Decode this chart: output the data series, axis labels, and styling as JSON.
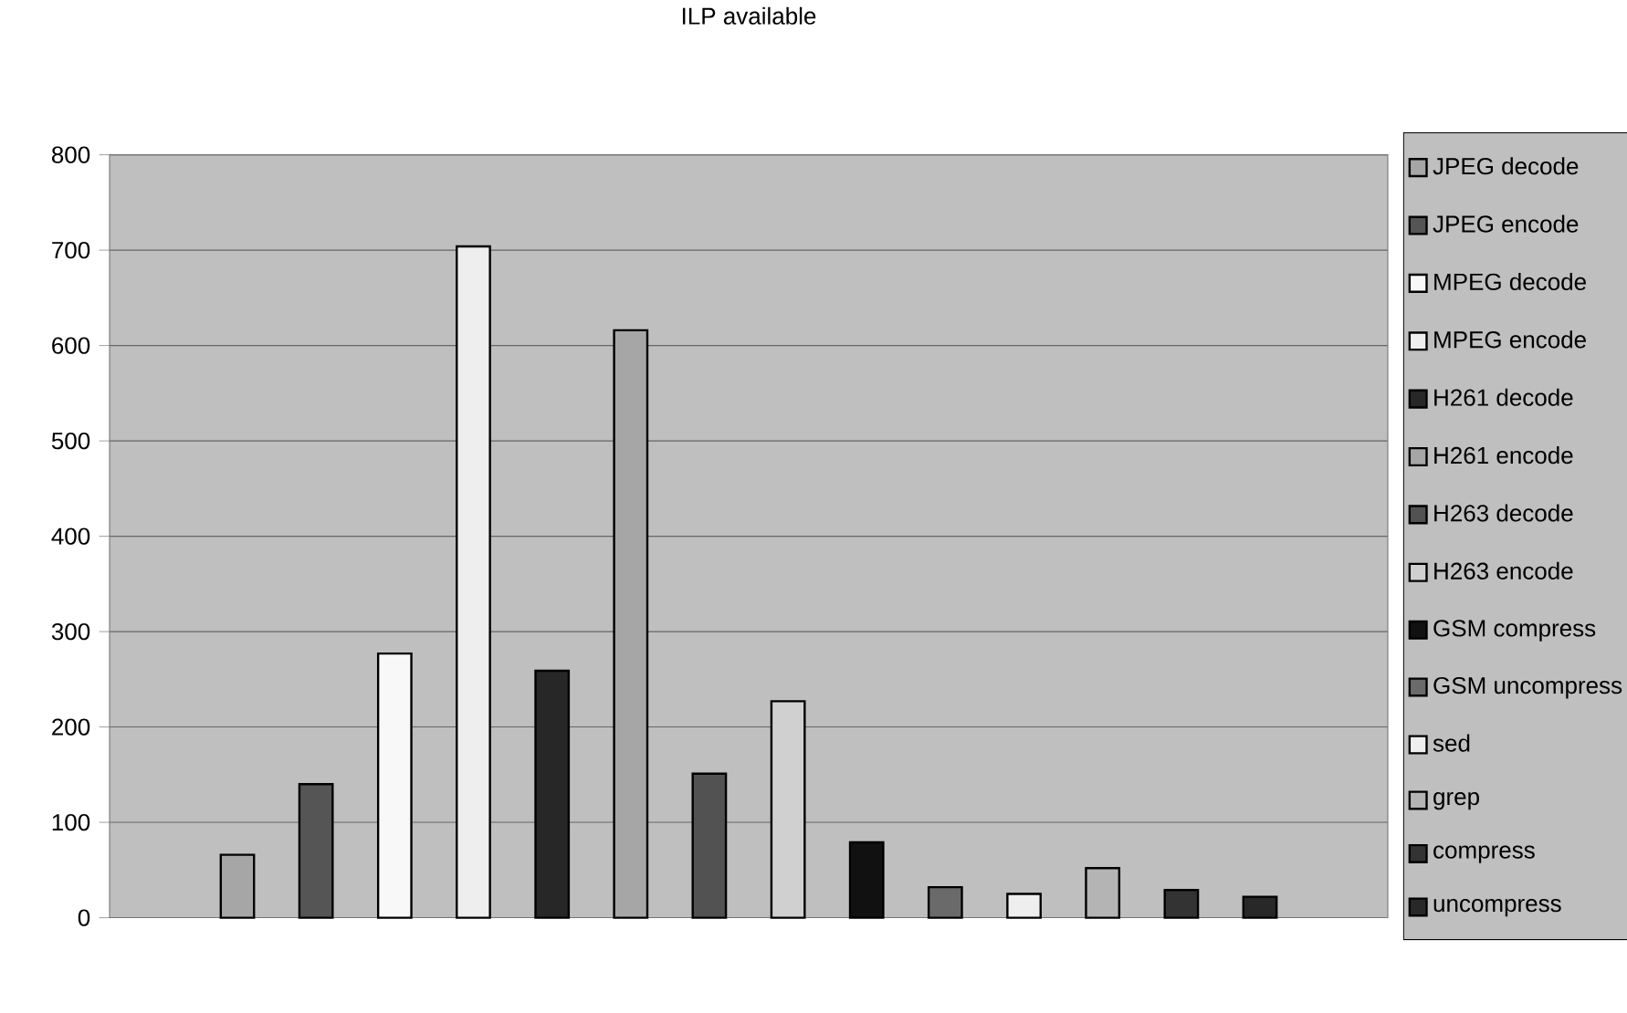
{
  "chart_data": {
    "type": "bar",
    "title": "ILP available",
    "categories": [
      null
    ],
    "series": [
      {
        "name": "JPEG decode",
        "color": "#a6a6a6",
        "values": [
          66
        ]
      },
      {
        "name": "JPEG encode",
        "color": "#555555",
        "values": [
          140
        ]
      },
      {
        "name": "MPEG decode",
        "color": "#f8f8f8",
        "values": [
          277
        ]
      },
      {
        "name": "MPEG encode",
        "color": "#eeeeee",
        "values": [
          704
        ]
      },
      {
        "name": "H261 decode",
        "color": "#272727",
        "values": [
          259
        ]
      },
      {
        "name": "H261 encode",
        "color": "#a6a6a6",
        "values": [
          616
        ]
      },
      {
        "name": "H263 decode",
        "color": "#525252",
        "values": [
          151
        ]
      },
      {
        "name": "H263 encode",
        "color": "#d0d0d0",
        "values": [
          227
        ]
      },
      {
        "name": "GSM compress",
        "color": "#111111",
        "values": [
          79
        ]
      },
      {
        "name": "GSM uncompress",
        "color": "#6a6a6a",
        "values": [
          32
        ]
      },
      {
        "name": "sed",
        "color": "#eeeeee",
        "values": [
          25
        ]
      },
      {
        "name": "grep",
        "color": "#b4b4b4",
        "values": [
          52
        ]
      },
      {
        "name": "compress",
        "color": "#333333",
        "values": [
          29
        ]
      },
      {
        "name": "uncompress",
        "color": "#282828",
        "values": [
          22
        ]
      }
    ],
    "ylim": [
      0,
      800
    ],
    "yticks": [
      0,
      100,
      200,
      300,
      400,
      500,
      600,
      700,
      800
    ],
    "grid": "y",
    "legend": "right"
  }
}
